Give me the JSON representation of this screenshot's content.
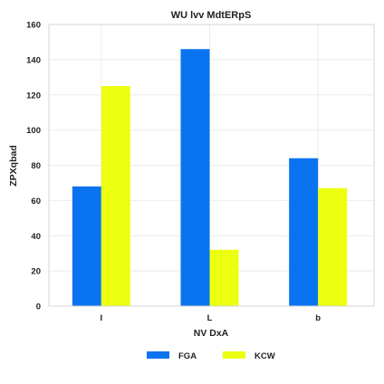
{
  "chart_data": {
    "type": "bar",
    "title": "WU lvv MdtERpS",
    "xlabel": "NV DxA",
    "ylabel": "ZPXqbad",
    "categories": [
      "I",
      "L",
      "b"
    ],
    "series": [
      {
        "name": "FGA",
        "values": [
          68,
          146,
          84
        ],
        "color": "#0a74f0"
      },
      {
        "name": "KCW",
        "values": [
          125,
          32,
          67
        ],
        "color": "#ecff10"
      }
    ],
    "ylim": [
      0,
      160
    ],
    "yticks": [
      0,
      20,
      40,
      60,
      80,
      100,
      120,
      140,
      160
    ],
    "grid": true,
    "legend_position": "bottom-center"
  }
}
